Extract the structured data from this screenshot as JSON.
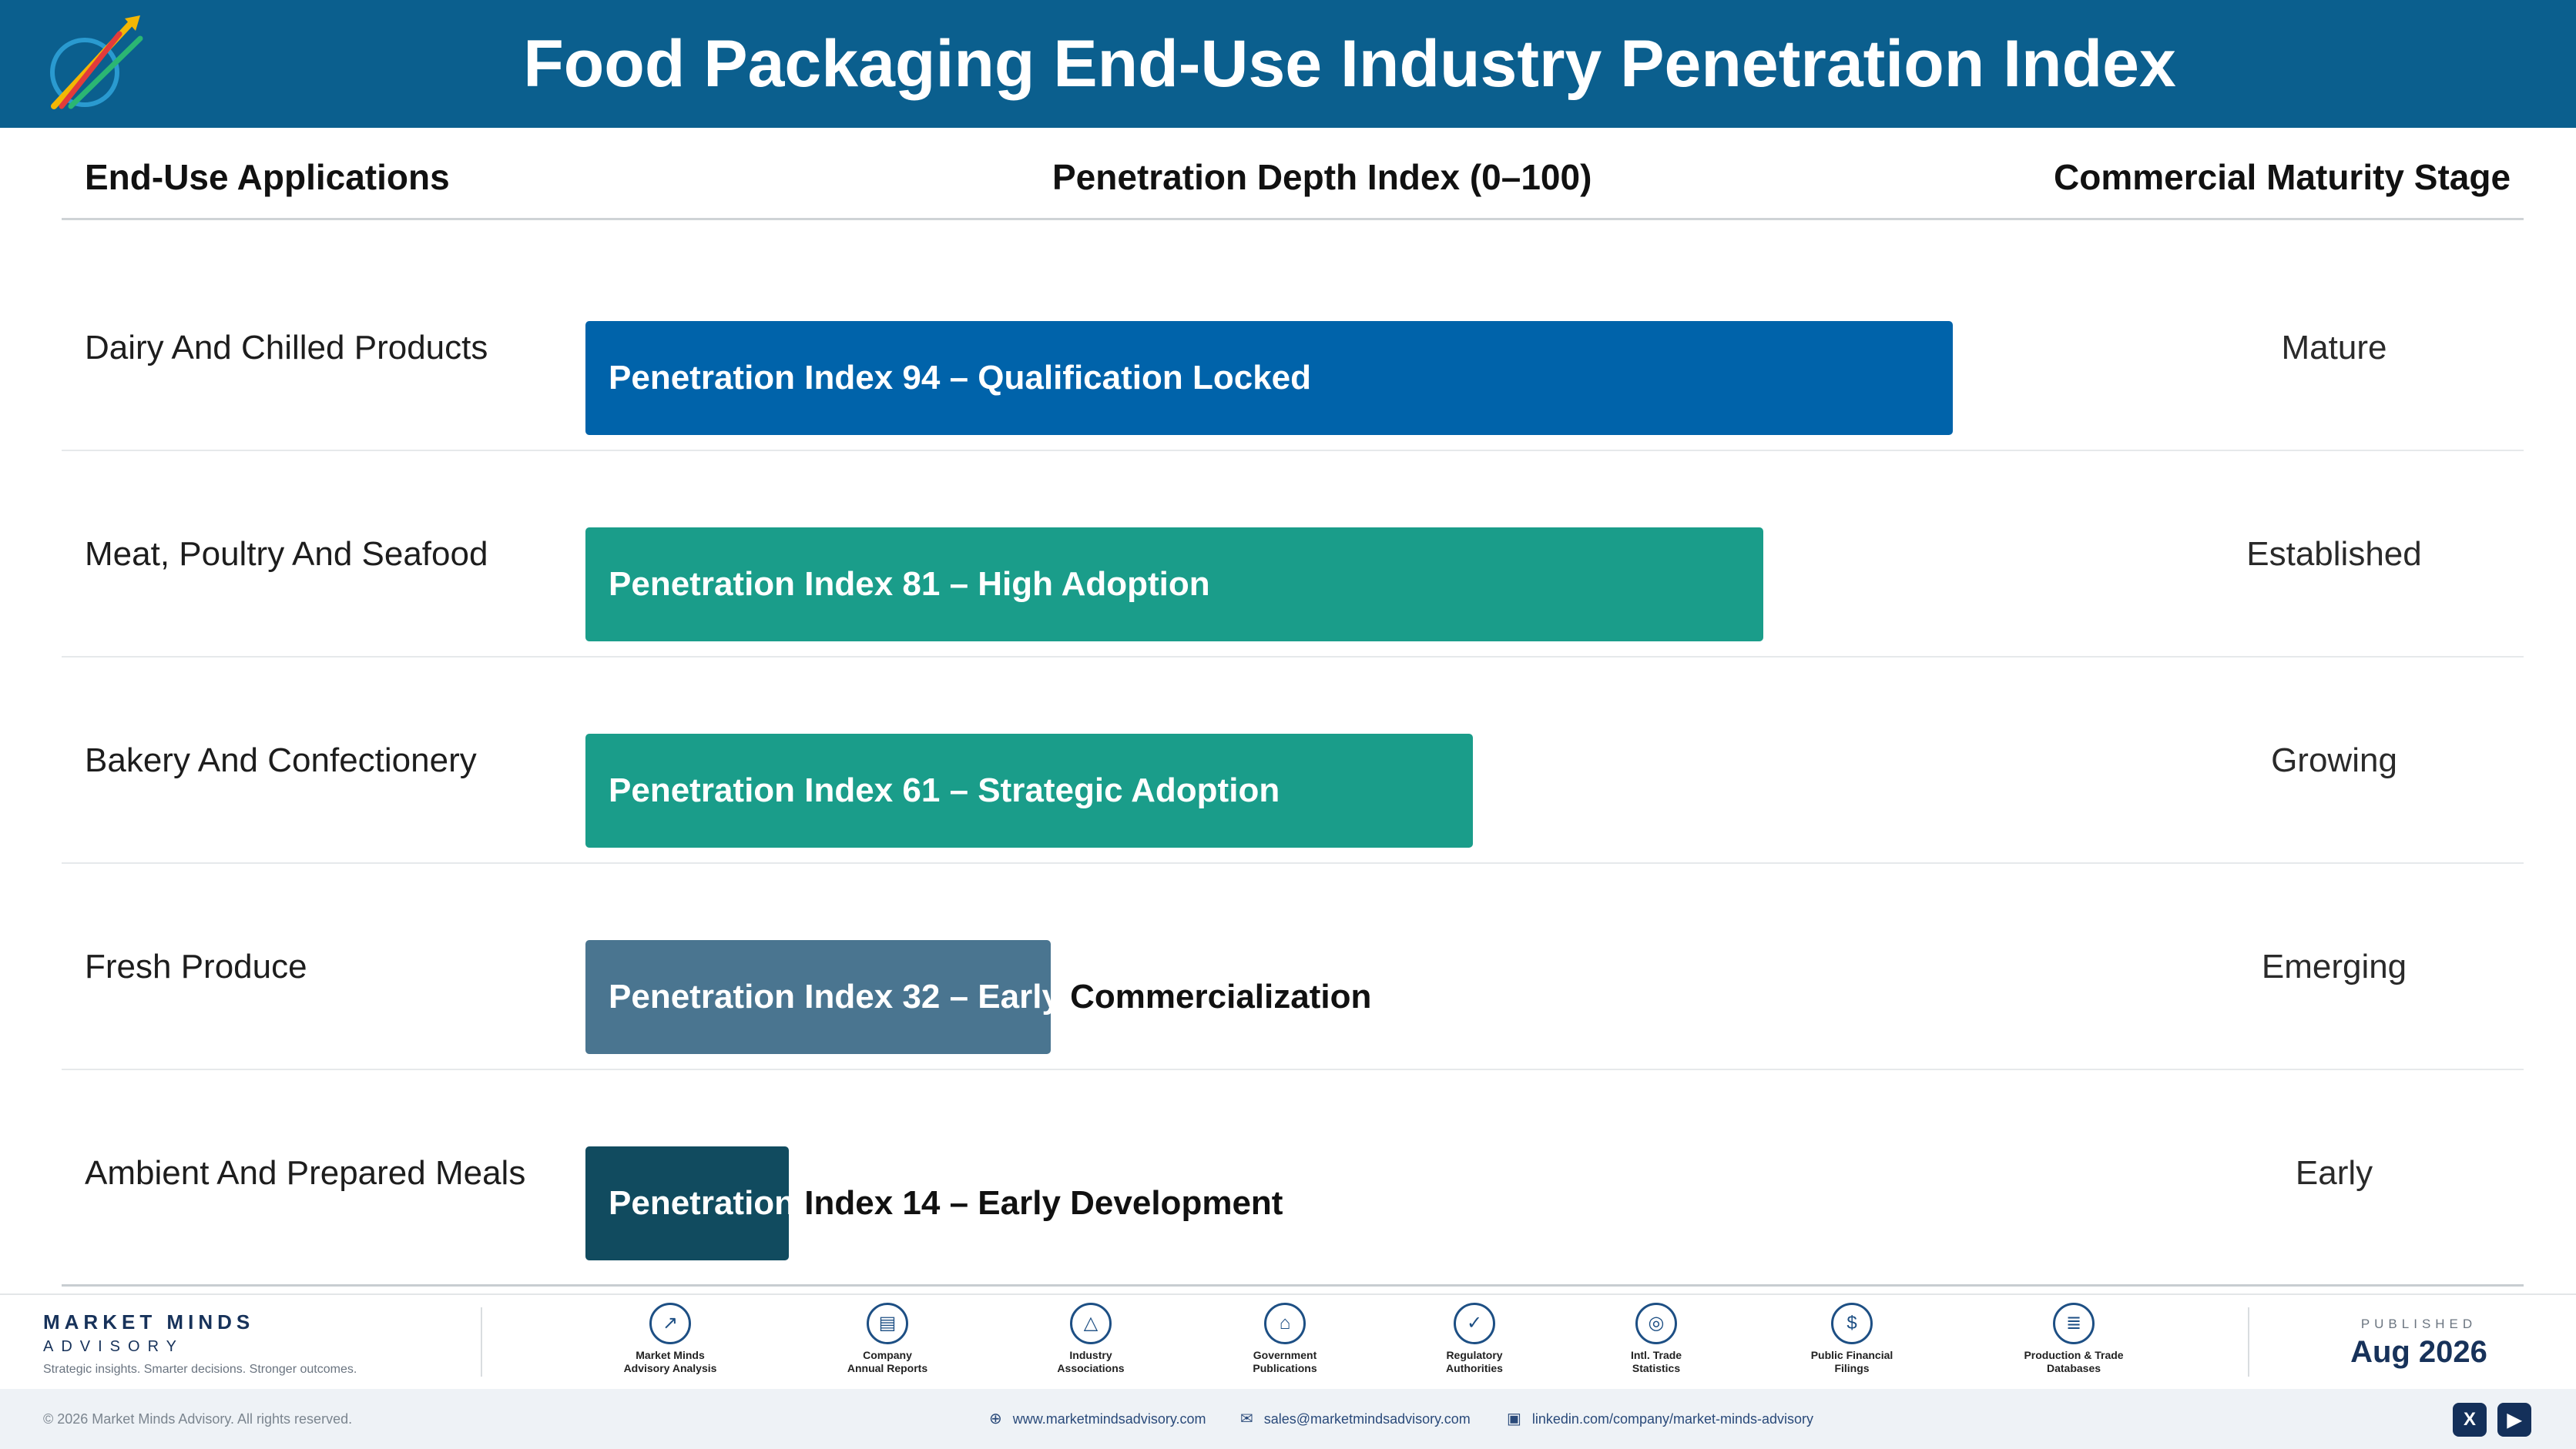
{
  "title": "Food Packaging End-Use Industry Penetration Index",
  "columns": {
    "applications": "End-Use Applications",
    "index": "Penetration Depth Index (0–100)",
    "stage": "Commercial Maturity Stage"
  },
  "colors": {
    "header": "#0b5f8e",
    "mature": "#0063aa",
    "established": "#1a9d8a",
    "growing": "#1a9d8a",
    "emerging": "#4a7590",
    "early": "#114b5f"
  },
  "rows": [
    {
      "application": "Dairy And Chilled Products",
      "bar_in": "Penetration Index 94 – Qualification Locked",
      "bar_out": "",
      "stage": "Mature"
    },
    {
      "application": "Meat, Poultry And Seafood",
      "bar_in": "Penetration Index 81 – High Adoption",
      "bar_out": "",
      "stage": "Established"
    },
    {
      "application": "Bakery And Confectionery",
      "bar_in": "Penetration Index 61 – Strategic Adoption",
      "bar_out": "",
      "stage": "Growing"
    },
    {
      "application": "Fresh Produce",
      "bar_in": "Penetration Index 32 – Early ",
      "bar_out": "Commercialization",
      "stage": "Emerging"
    },
    {
      "application": "Ambient And Prepared Meals",
      "bar_in": "Penetration ",
      "bar_out": "Index 14 – Early Development",
      "stage": "Early"
    }
  ],
  "chart_data": {
    "type": "bar",
    "orientation": "horizontal",
    "title": "Food Packaging End-Use Industry Penetration Index",
    "xlabel": "Penetration Depth Index (0–100)",
    "ylabel": "End-Use Applications",
    "xlim": [
      0,
      100
    ],
    "categories": [
      "Dairy And Chilled Products",
      "Meat, Poultry And Seafood",
      "Bakery And Confectionery",
      "Fresh Produce",
      "Ambient And Prepared Meals"
    ],
    "values": [
      94,
      81,
      61,
      32,
      14
    ],
    "stages": [
      "Mature",
      "Established",
      "Growing",
      "Emerging",
      "Early"
    ],
    "labels": [
      "Penetration Index 94 – Qualification Locked",
      "Penetration Index 81 – High Adoption",
      "Penetration Index 61 – Strategic Adoption",
      "Penetration Index 32 – Early Commercialization",
      "Penetration Index 14 – Early Development"
    ],
    "bar_colors": [
      "#0063aa",
      "#1a9d8a",
      "#1a9d8a",
      "#4a7590",
      "#114b5f"
    ],
    "grid": false,
    "legend": "none"
  },
  "footer": {
    "brand_name": "MARKET MINDS",
    "brand_sub": "ADVISORY",
    "brand_tagline": "Strategic insights. Smarter decisions. Stronger outcomes.",
    "sources": [
      {
        "label": "Market Minds\nAdvisory Analysis",
        "icon": "trend-icon",
        "glyph": "↗"
      },
      {
        "label": "Company\nAnnual Reports",
        "icon": "document-icon",
        "glyph": "▤"
      },
      {
        "label": "Industry\nAssociations",
        "icon": "network-icon",
        "glyph": "△"
      },
      {
        "label": "Government\nPublications",
        "icon": "building-icon",
        "glyph": "⌂"
      },
      {
        "label": "Regulatory\nAuthorities",
        "icon": "shield-icon",
        "glyph": "✓"
      },
      {
        "label": "Intl. Trade\nStatistics",
        "icon": "globe-icon",
        "glyph": "◎"
      },
      {
        "label": "Public Financial\nFilings",
        "icon": "dollar-icon",
        "glyph": "$"
      },
      {
        "label": "Production & Trade\nDatabases",
        "icon": "database-icon",
        "glyph": "≣"
      }
    ],
    "published_label": "PUBLISHED",
    "published_date": "Aug 2026"
  },
  "bottom": {
    "copyright": "© 2026 Market Minds Advisory. All rights reserved.",
    "website": "www.marketmindsadvisory.com",
    "email": "sales@marketmindsadvisory.com",
    "linkedin": "linkedin.com/company/market-minds-advisory",
    "social": [
      "X",
      "▶"
    ]
  }
}
